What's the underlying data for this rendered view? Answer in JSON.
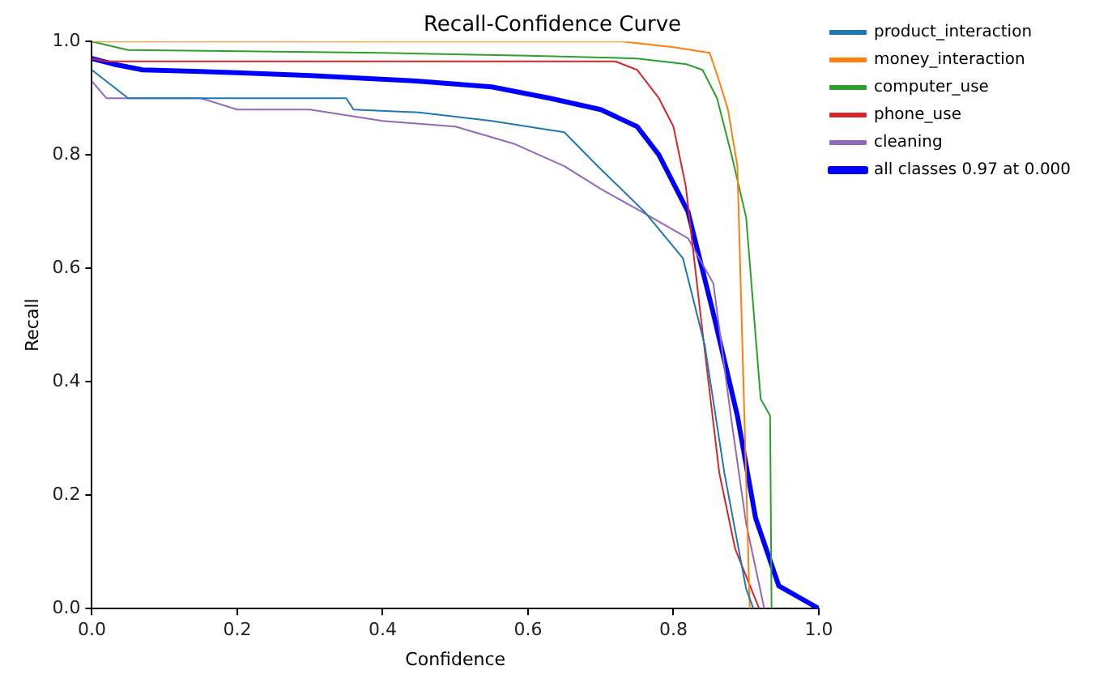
{
  "chart_data": {
    "type": "line",
    "title": "Recall-Confidence Curve",
    "xlabel": "Confidence",
    "ylabel": "Recall",
    "xlim": [
      0,
      1
    ],
    "ylim": [
      0,
      1
    ],
    "xticks": [
      {
        "value": 0,
        "label": "0.0"
      },
      0.2,
      0.4,
      0.6,
      0.8,
      {
        "value": 1,
        "label": "1.0"
      }
    ],
    "yticks": [
      {
        "value": 0,
        "label": "0.0"
      },
      0.2,
      0.4,
      0.6,
      0.8,
      {
        "value": 1,
        "label": "1.0"
      }
    ],
    "grid": false,
    "legend": "right",
    "marker": "none",
    "line_style": "solid",
    "series": [
      {
        "name": "product_interaction",
        "color": "#1f77b4",
        "x": [
          0,
          0.05,
          0.35,
          0.36,
          0.45,
          0.55,
          0.65,
          0.696,
          0.76,
          0.813,
          0.843,
          0.87,
          0.9,
          0.91
        ],
        "values": [
          0.95,
          0.9,
          0.9,
          0.88,
          0.875,
          0.86,
          0.84,
          0.78,
          0.7,
          0.618,
          0.465,
          0.24,
          0.035,
          0
        ]
      },
      {
        "name": "money_interaction",
        "color": "#ff7f0e",
        "x": [
          0,
          0.73,
          0.8,
          0.85,
          0.863,
          0.875,
          0.888,
          0.905
        ],
        "values": [
          1,
          1,
          0.99,
          0.98,
          0.93,
          0.88,
          0.78,
          0
        ]
      },
      {
        "name": "computer_use",
        "color": "#2ca02c",
        "x": [
          0,
          0.05,
          0.4,
          0.6,
          0.75,
          0.818,
          0.84,
          0.86,
          0.88,
          0.9,
          0.92,
          0.933,
          0.935
        ],
        "values": [
          1,
          0.985,
          0.98,
          0.975,
          0.97,
          0.96,
          0.95,
          0.9,
          0.8,
          0.69,
          0.37,
          0.34,
          0
        ]
      },
      {
        "name": "phone_use",
        "color": "#d62728",
        "x": [
          0,
          0.02,
          0.72,
          0.75,
          0.78,
          0.8,
          0.817,
          0.838,
          0.863,
          0.885,
          0.918
        ],
        "values": [
          0.97,
          0.965,
          0.965,
          0.95,
          0.9,
          0.85,
          0.745,
          0.51,
          0.24,
          0.105,
          0
        ]
      },
      {
        "name": "cleaning",
        "color": "#9467bd",
        "x": [
          0,
          0.02,
          0.15,
          0.2,
          0.3,
          0.4,
          0.5,
          0.58,
          0.65,
          0.7,
          0.756,
          0.82,
          0.855,
          0.88,
          0.9,
          0.925
        ],
        "values": [
          0.93,
          0.9,
          0.9,
          0.88,
          0.88,
          0.86,
          0.85,
          0.82,
          0.78,
          0.74,
          0.7,
          0.653,
          0.573,
          0.33,
          0.15,
          0
        ]
      },
      {
        "name": "all classes 0.97 at 0.000",
        "color": "#0000ff",
        "x": [
          0,
          0.03,
          0.07,
          0.2,
          0.3,
          0.45,
          0.55,
          0.63,
          0.7,
          0.75,
          0.78,
          0.82,
          0.855,
          0.888,
          0.913,
          0.945,
          1
        ],
        "values": [
          0.97,
          0.96,
          0.95,
          0.945,
          0.94,
          0.93,
          0.92,
          0.9,
          0.88,
          0.85,
          0.8,
          0.7,
          0.52,
          0.34,
          0.16,
          0.04,
          0
        ]
      }
    ]
  }
}
